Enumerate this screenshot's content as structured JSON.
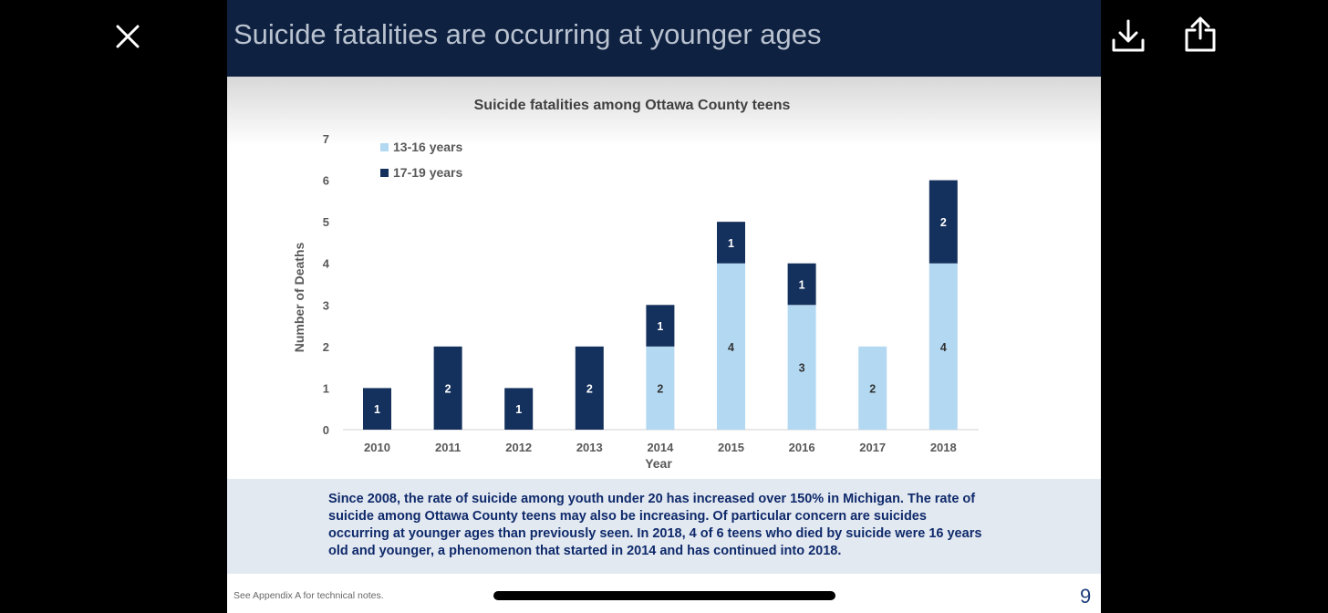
{
  "viewer": {
    "close_icon": "close-icon",
    "download_icon": "download-icon",
    "share_icon": "share-icon"
  },
  "slide": {
    "title": "Suicide fatalities are occurring at younger ages",
    "note": "Since 2008, the rate of suicide among youth under 20 has increased over 150% in Michigan.  The rate of suicide among Ottawa County teens may also be increasing. Of particular concern are suicides occurring at younger ages than previously seen. In 2018, 4 of 6 teens who died by suicide were 16 years old and younger, a phenomenon that started in 2014 and has continued into 2018.",
    "footer_note": "See Appendix A for technical notes.",
    "page_number": "9"
  },
  "chart_data": {
    "type": "bar",
    "stacked": true,
    "title": "Suicide fatalities among Ottawa County teens",
    "xlabel": "Year",
    "ylabel": "Number of Deaths",
    "categories": [
      "2010",
      "2011",
      "2012",
      "2013",
      "2014",
      "2015",
      "2016",
      "2017",
      "2018"
    ],
    "series": [
      {
        "name": "13-16 years",
        "color": "#b3d8f2",
        "label_color": "#333333",
        "values": [
          0,
          0,
          0,
          0,
          2,
          4,
          3,
          2,
          4
        ]
      },
      {
        "name": "17-19 years",
        "color": "#14305c",
        "label_color": "#ffffff",
        "values": [
          1,
          2,
          1,
          2,
          1,
          1,
          1,
          0,
          2
        ]
      }
    ],
    "ylim": [
      0,
      7
    ],
    "yticks": [
      0,
      1,
      2,
      3,
      4,
      5,
      6,
      7
    ],
    "grid": false,
    "legend_position": "top-left"
  }
}
